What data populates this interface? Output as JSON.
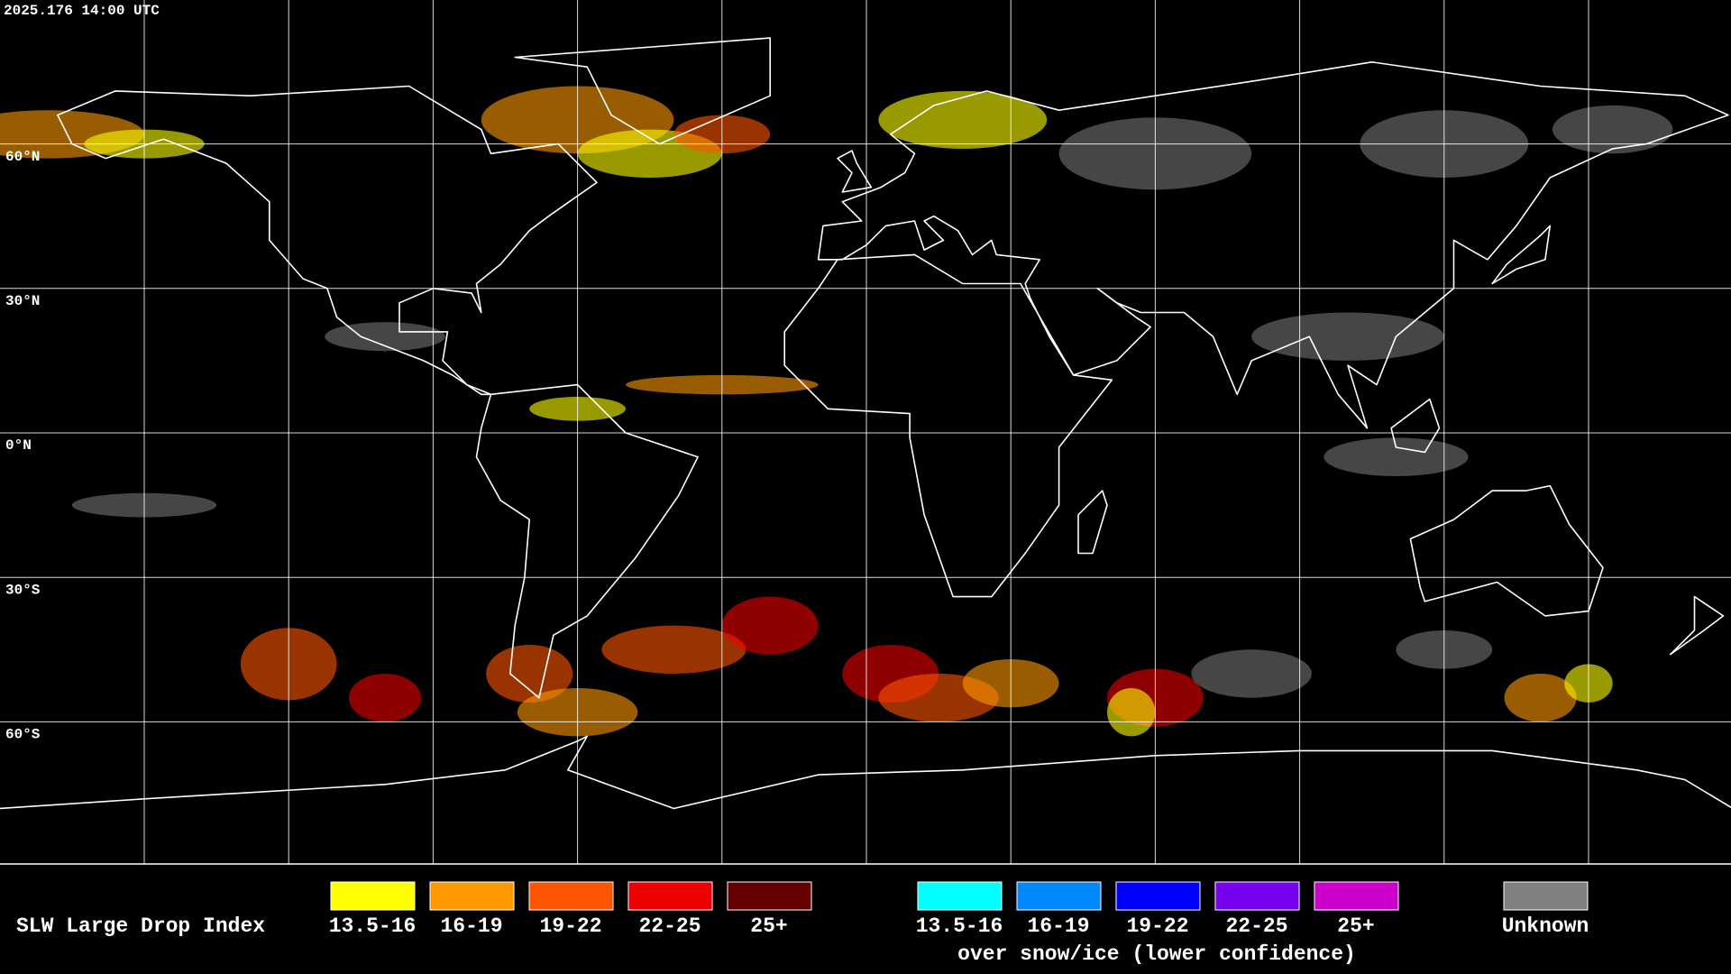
{
  "map": {
    "timestamp": "2025.176 14:00 UTC",
    "lat_labels": [
      "60°N",
      "30°N",
      "0°N",
      "30°S",
      "60°S"
    ]
  },
  "legend": {
    "title": "SLW Large Drop Index",
    "items": [
      {
        "label": "13.5-16",
        "color": "#ffff00"
      },
      {
        "label": "16-19",
        "color": "#ff9900"
      },
      {
        "label": "19-22",
        "color": "#ff5500"
      },
      {
        "label": "22-25",
        "color": "#ee0000"
      },
      {
        "label": "25+",
        "color": "#660000"
      }
    ],
    "snow_items": [
      {
        "label": "13.5-16",
        "color": "#00ffff"
      },
      {
        "label": "16-19",
        "color": "#0088ff"
      },
      {
        "label": "19-22",
        "color": "#0000ff"
      },
      {
        "label": "22-25",
        "color": "#7700ee"
      },
      {
        "label": "25+",
        "color": "#cc00cc"
      }
    ],
    "snow_note": "over snow/ice (lower confidence)",
    "unknown": {
      "label": "Unknown",
      "color": "#808080"
    }
  }
}
